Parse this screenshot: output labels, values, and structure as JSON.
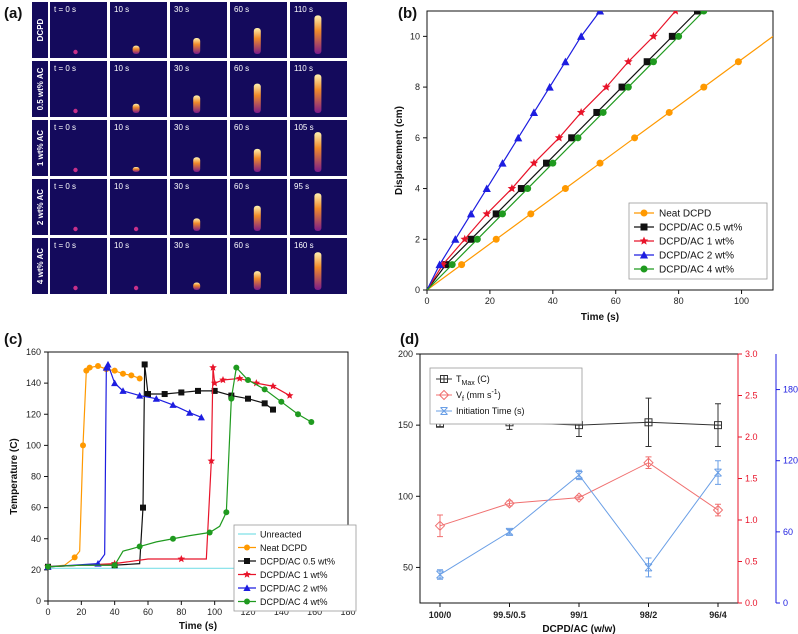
{
  "panel_labels": {
    "a": "(a)",
    "b": "(b)",
    "c": "(c)",
    "d": "(d)"
  },
  "colors": {
    "neat": "#ff9900",
    "ac05": "#111111",
    "ac1": "#e8142a",
    "ac2": "#1d1de0",
    "ac4": "#1f9a1f",
    "unreacted": "#7fe0e8",
    "tmax": "#333333",
    "vf": "#f07070",
    "init": "#6a9fe6",
    "axis_right_red": "#e8142a",
    "axis_right_blue": "#1d1de0",
    "thermal_bg": "#140a5c"
  },
  "frames": {
    "rows": [
      {
        "label": "DCPD",
        "times": [
          "t = 0 s",
          "10 s",
          "30 s",
          "60 s",
          "110 s"
        ]
      },
      {
        "label": "0.5 wt% AC",
        "times": [
          "t = 0 s",
          "10 s",
          "30 s",
          "60 s",
          "110 s"
        ]
      },
      {
        "label": "1 wt% AC",
        "times": [
          "t = 0 s",
          "10 s",
          "30 s",
          "60 s",
          "105 s"
        ]
      },
      {
        "label": "2 wt% AC",
        "times": [
          "t = 0 s",
          "10 s",
          "30 s",
          "60 s",
          "95 s"
        ]
      },
      {
        "label": "4 wt% AC",
        "times": [
          "t = 0 s",
          "10 s",
          "30 s",
          "60 s",
          "160 s"
        ]
      }
    ],
    "front_fraction": [
      [
        0.08,
        0.2,
        0.38,
        0.62,
        0.92
      ],
      [
        0.05,
        0.22,
        0.42,
        0.7,
        0.92
      ],
      [
        0.05,
        0.12,
        0.35,
        0.55,
        0.95
      ],
      [
        0.05,
        0.1,
        0.3,
        0.6,
        0.9
      ],
      [
        0.05,
        0.08,
        0.18,
        0.45,
        0.9
      ]
    ]
  },
  "chart_data": [
    {
      "panel": "b",
      "type": "line",
      "xlabel": "Time (s)",
      "ylabel": "Displacement (cm)",
      "xlim": [
        0,
        110
      ],
      "ylim": [
        0,
        11
      ],
      "xticks": [
        0,
        20,
        40,
        60,
        80,
        100
      ],
      "yticks": [
        0,
        2,
        4,
        6,
        8,
        10
      ],
      "legend_position": "bottom-right",
      "series": [
        {
          "name": "Neat DCPD",
          "marker": "circle",
          "color": "#ff9900",
          "x": [
            0,
            11,
            22,
            33,
            44,
            55,
            66,
            77,
            88,
            99
          ],
          "y": [
            0,
            1,
            2,
            3,
            4,
            5,
            6,
            7,
            8,
            9
          ]
        },
        {
          "name": "DCPD/AC 0.5 wt%",
          "marker": "square",
          "color": "#111111",
          "x": [
            0,
            6,
            14,
            22,
            30,
            38,
            46,
            54,
            62,
            70,
            78,
            86
          ],
          "y": [
            0,
            1,
            2,
            3,
            4,
            5,
            6,
            7,
            8,
            9,
            10,
            11
          ]
        },
        {
          "name": "DCPD/AC 1 wt%",
          "marker": "star",
          "color": "#e8142a",
          "x": [
            0,
            5,
            12,
            19,
            27,
            34,
            42,
            49,
            57,
            64,
            72,
            79
          ],
          "y": [
            0,
            1,
            2,
            3,
            4,
            5,
            6,
            7,
            8,
            9,
            10,
            11
          ]
        },
        {
          "name": "DCPD/AC 2 wt%",
          "marker": "triangle",
          "color": "#1d1de0",
          "x": [
            0,
            4,
            9,
            14,
            19,
            24,
            29,
            34,
            39,
            44,
            49,
            55
          ],
          "y": [
            0,
            1,
            2,
            3,
            4,
            5,
            6,
            7,
            8,
            9,
            10,
            11
          ]
        },
        {
          "name": "DCPD/AC 4 wt%",
          "marker": "circle",
          "color": "#1f9a1f",
          "x": [
            0,
            8,
            16,
            24,
            32,
            40,
            48,
            56,
            64,
            72,
            80,
            88
          ],
          "y": [
            0,
            1,
            2,
            3,
            4,
            5,
            6,
            7,
            8,
            9,
            10,
            11
          ]
        }
      ]
    },
    {
      "panel": "c",
      "type": "line",
      "xlabel": "Time (s)",
      "ylabel": "Temperature (C)",
      "xlim": [
        0,
        180
      ],
      "ylim": [
        0,
        160
      ],
      "xticks": [
        0,
        20,
        40,
        60,
        80,
        100,
        120,
        140,
        160,
        180
      ],
      "yticks": [
        0,
        20,
        40,
        60,
        80,
        100,
        120,
        140,
        160
      ],
      "legend_position": "bottom-left",
      "series": [
        {
          "name": "Unreacted",
          "marker": "none",
          "color": "#7fe0e8",
          "x": [
            0,
            160
          ],
          "y": [
            21,
            21
          ]
        },
        {
          "name": "Neat DCPD",
          "marker": "circle",
          "color": "#ff9900",
          "x": [
            0,
            10,
            16,
            19,
            21,
            23,
            25,
            30,
            35,
            40,
            45,
            50,
            55
          ],
          "y": [
            22,
            23,
            28,
            32,
            100,
            148,
            150,
            151,
            149,
            148,
            146,
            145,
            143
          ]
        },
        {
          "name": "DCPD/AC 0.5 wt%",
          "marker": "square",
          "color": "#111111",
          "x": [
            0,
            20,
            40,
            55,
            57,
            58,
            60,
            70,
            80,
            90,
            100,
            110,
            120,
            130,
            135
          ],
          "y": [
            22,
            23,
            23,
            24,
            60,
            152,
            133,
            133,
            134,
            135,
            135,
            132,
            130,
            127,
            123
          ]
        },
        {
          "name": "DCPD/AC 1 wt%",
          "marker": "star",
          "color": "#e8142a",
          "x": [
            0,
            20,
            40,
            60,
            80,
            95,
            98,
            99,
            100,
            105,
            115,
            125,
            135,
            145
          ],
          "y": [
            22,
            23,
            24,
            27,
            27,
            27,
            90,
            150,
            140,
            142,
            143,
            140,
            138,
            132
          ]
        },
        {
          "name": "DCPD/AC 2 wt%",
          "marker": "triangle",
          "color": "#1d1de0",
          "x": [
            0,
            15,
            30,
            34,
            35,
            36,
            40,
            45,
            55,
            65,
            75,
            85,
            92
          ],
          "y": [
            22,
            23,
            24,
            30,
            150,
            152,
            140,
            135,
            132,
            130,
            126,
            121,
            118
          ]
        },
        {
          "name": "DCPD/AC 4 wt%",
          "marker": "circle",
          "color": "#1f9a1f",
          "x": [
            0,
            20,
            40,
            45,
            55,
            65,
            75,
            85,
            97,
            103,
            107,
            110,
            113,
            120,
            130,
            140,
            150,
            158
          ],
          "y": [
            22,
            23,
            23,
            32,
            35,
            38,
            40,
            42,
            44,
            48,
            57,
            130,
            150,
            142,
            136,
            128,
            120,
            115
          ]
        }
      ]
    },
    {
      "panel": "d",
      "type": "line",
      "xlabel": "DCPD/AC (w/w)",
      "categories": [
        "100/0",
        "99.5/0.5",
        "99/1",
        "98/2",
        "96/4"
      ],
      "legend_position": "top-left",
      "axes": {
        "left": {
          "range": [
            25,
            200
          ],
          "ticks": [
            50,
            100,
            150,
            200
          ]
        },
        "right_red": {
          "range": [
            0,
            3.0
          ],
          "ticks": [
            0.0,
            0.5,
            1.0,
            1.5,
            2.0,
            2.5,
            3.0
          ],
          "tick_labels": [
            "0.0",
            "0.5",
            "1.0",
            "1.5",
            "2.0",
            "2.5",
            "3.0"
          ]
        },
        "right_blue": {
          "range": [
            0,
            210
          ],
          "ticks": [
            0,
            60,
            120,
            180
          ]
        }
      },
      "series": [
        {
          "name": "T_Max (C)",
          "axis": "left",
          "marker": "boxed-plus",
          "color": "#333333",
          "values": [
            151,
            152,
            150,
            152,
            150
          ],
          "errors": [
            2,
            5,
            8,
            17,
            15
          ]
        },
        {
          "name": "V_f (mm s^-1)",
          "axis": "right_red",
          "marker": "diamond",
          "color": "#f07070",
          "values": [
            0.93,
            1.2,
            1.27,
            1.69,
            1.12
          ],
          "errors": [
            0.13,
            0.03,
            0.02,
            0.07,
            0.07
          ]
        },
        {
          "name": "Initiation Time (s)",
          "axis": "right_blue",
          "marker": "x-box",
          "color": "#6a9fe6",
          "values": [
            24,
            60,
            108,
            30,
            110
          ],
          "errors": [
            4,
            2,
            4,
            8,
            10
          ]
        }
      ],
      "legend_labels": {
        "tmax_main": "T",
        "tmax_sub": "Max",
        "tmax_tail": " (C)",
        "vf_main": "V",
        "vf_sub": "f",
        "vf_tail": " (mm s",
        "vf_sup": "-1",
        "vf_close": ")",
        "init": "Initiation Time (s)"
      }
    }
  ]
}
